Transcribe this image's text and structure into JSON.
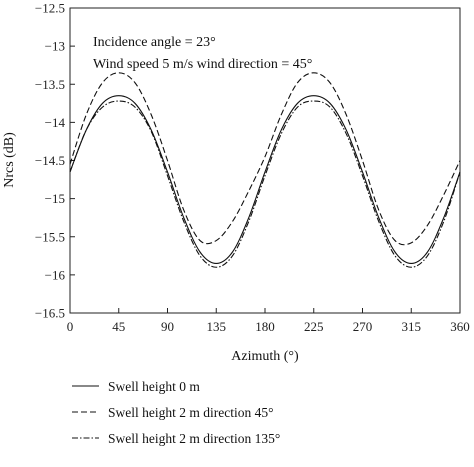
{
  "chart_data": {
    "type": "line",
    "xlabel": "Azimuth (°)",
    "ylabel": "Nrcs (dB)",
    "xlim": [
      0,
      360
    ],
    "ylim": [
      -16.5,
      -12.5
    ],
    "xticks": [
      0,
      45,
      90,
      135,
      180,
      225,
      270,
      315,
      360
    ],
    "yticks": [
      -12.5,
      -13,
      -13.5,
      -14,
      -14.5,
      -15,
      -15.5,
      -16,
      -16.5
    ],
    "xtick_labels": [
      "0",
      "45",
      "90",
      "135",
      "180",
      "225",
      "270",
      "315",
      "360"
    ],
    "ytick_labels": [
      "−12.5",
      "−13",
      "−13.5",
      "−14",
      "−14.5",
      "−15",
      "−15.5",
      "−16",
      "−16.5"
    ],
    "grid": false,
    "legend_position": "below plot",
    "annotations": [
      "Incidence angle = 23°",
      "Wind speed 5 m/s wind direction = 45°"
    ],
    "x": [
      0,
      15,
      30,
      45,
      60,
      75,
      90,
      105,
      120,
      135,
      150,
      165,
      180,
      195,
      210,
      225,
      240,
      255,
      270,
      285,
      300,
      315,
      330,
      345,
      360
    ],
    "series": [
      {
        "name": "Swell height 0 m",
        "style": "solid",
        "values": [
          -14.65,
          -14.1,
          -13.75,
          -13.65,
          -13.75,
          -14.1,
          -14.65,
          -15.25,
          -15.7,
          -15.85,
          -15.7,
          -15.25,
          -14.65,
          -14.1,
          -13.75,
          -13.65,
          -13.75,
          -14.1,
          -14.65,
          -15.25,
          -15.7,
          -15.85,
          -15.7,
          -15.25,
          -14.65
        ]
      },
      {
        "name": "Swell height 2 m direction 45°",
        "style": "dashed",
        "values": [
          -14.55,
          -13.9,
          -13.48,
          -13.35,
          -13.48,
          -13.9,
          -14.5,
          -15.15,
          -15.55,
          -15.55,
          -15.3,
          -14.9,
          -14.45,
          -13.9,
          -13.48,
          -13.35,
          -13.48,
          -13.9,
          -14.5,
          -15.15,
          -15.55,
          -15.58,
          -15.35,
          -14.95,
          -14.5
        ]
      },
      {
        "name": "Swell height 2 m direction 135°",
        "style": "dashdot",
        "values": [
          -14.65,
          -14.1,
          -13.8,
          -13.72,
          -13.8,
          -14.12,
          -14.7,
          -15.3,
          -15.75,
          -15.9,
          -15.75,
          -15.3,
          -14.7,
          -14.15,
          -13.8,
          -13.72,
          -13.8,
          -14.15,
          -14.7,
          -15.3,
          -15.75,
          -15.9,
          -15.75,
          -15.3,
          -14.65
        ]
      }
    ]
  }
}
